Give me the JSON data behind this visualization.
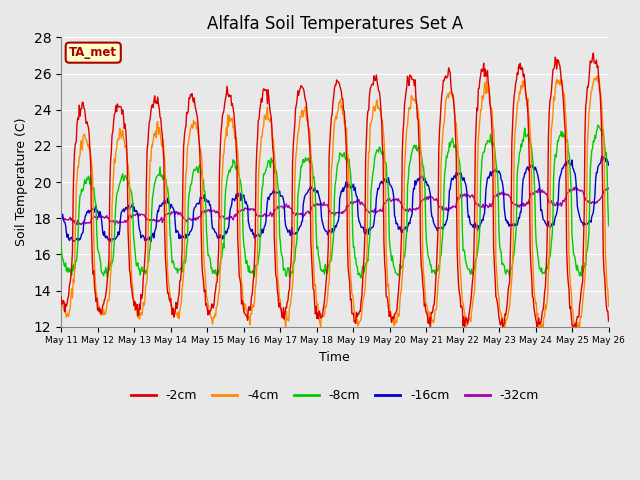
{
  "title": "Alfalfa Soil Temperatures Set A",
  "xlabel": "Time",
  "ylabel": "Soil Temperature (C)",
  "ylim": [
    12,
    28
  ],
  "yticks": [
    12,
    14,
    16,
    18,
    20,
    22,
    24,
    26,
    28
  ],
  "colors": {
    "-2cm": "#dd0000",
    "-4cm": "#ff8800",
    "-8cm": "#00cc00",
    "-16cm": "#0000cc",
    "-32cm": "#aa00aa"
  },
  "annotation": "TA_met",
  "annotation_bg": "#ffffcc",
  "annotation_color": "#aa0000",
  "background_color": "#e8e8e8",
  "fig_background": "#e8e8e8",
  "legend_labels": [
    "-2cm",
    "-4cm",
    "-8cm",
    "-16cm",
    "-32cm"
  ]
}
